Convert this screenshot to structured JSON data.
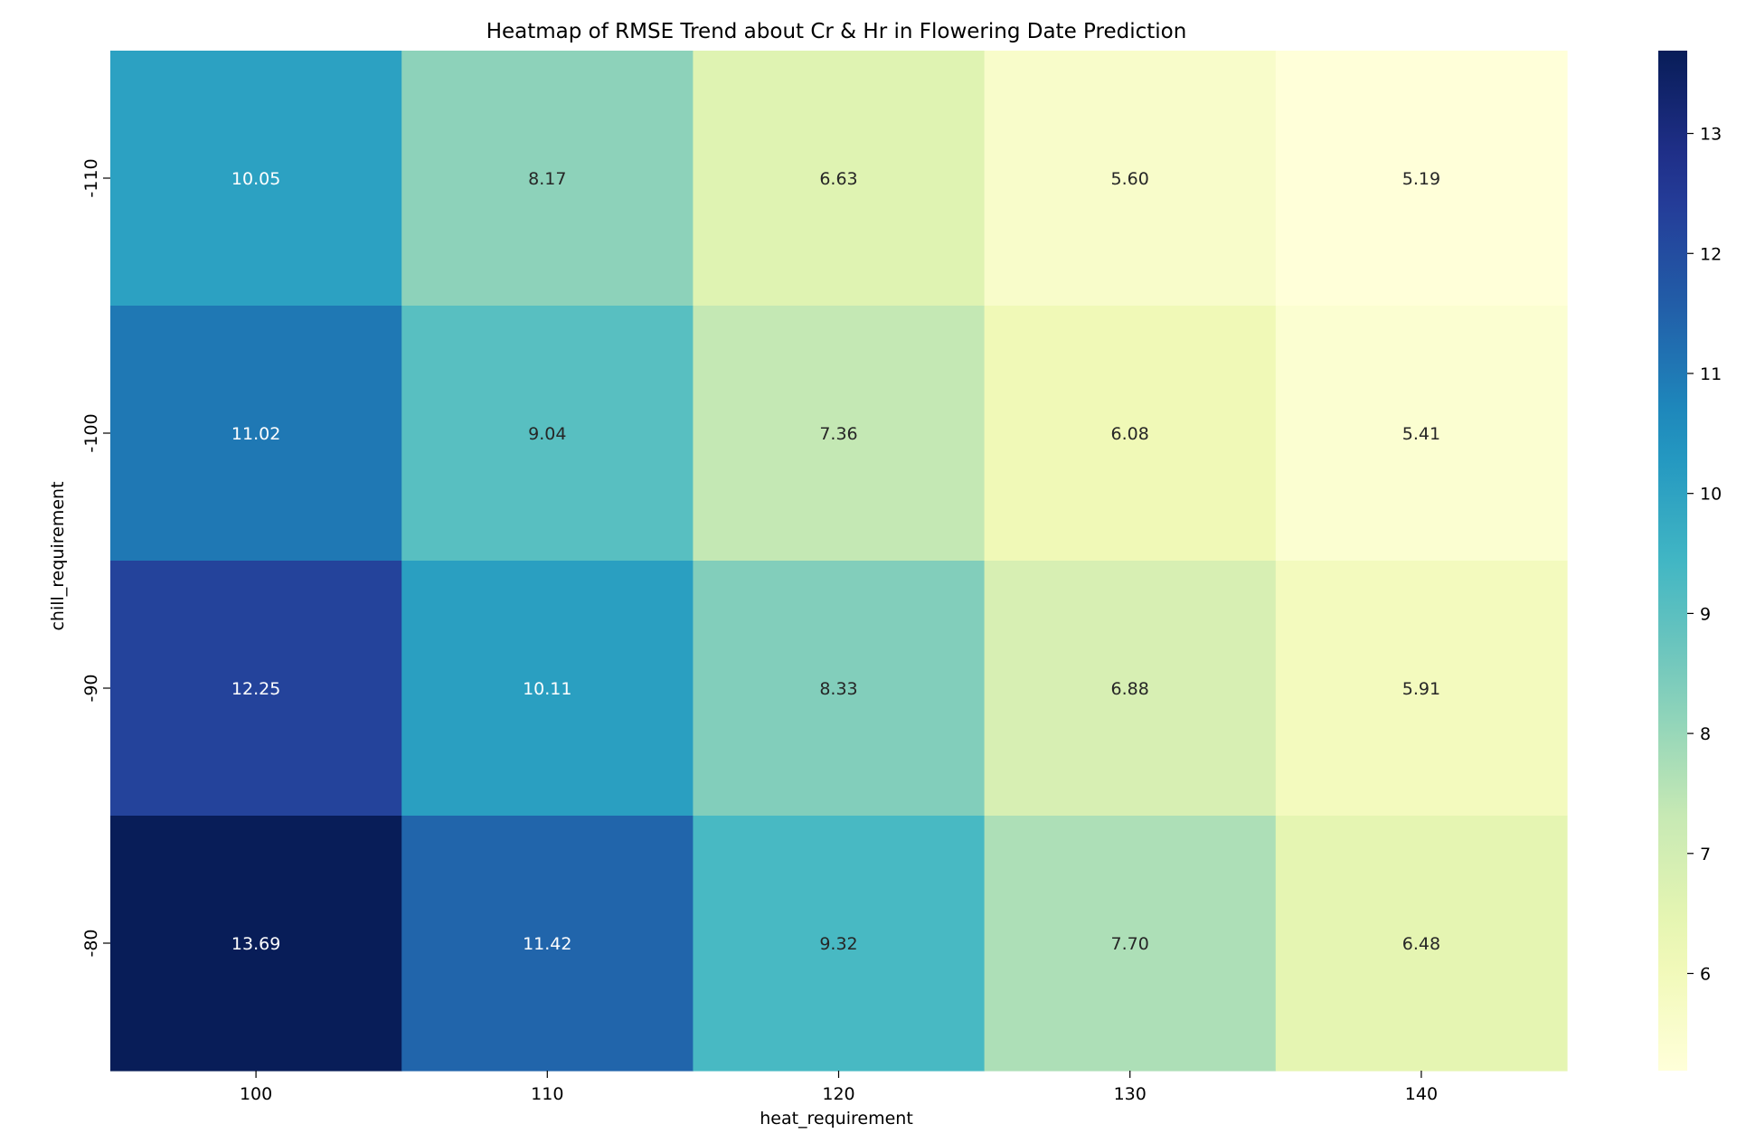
{
  "chart_data": {
    "type": "heatmap",
    "title": "Heatmap of RMSE Trend about Cr & Hr in Flowering Date Prediction",
    "xlabel": "heat_requirement",
    "ylabel": "chill_requirement",
    "x_categories": [
      "100",
      "110",
      "120",
      "130",
      "140"
    ],
    "y_categories": [
      "-110",
      "-100",
      "-90",
      "-80"
    ],
    "values": [
      [
        10.05,
        8.17,
        6.63,
        5.6,
        5.19
      ],
      [
        11.02,
        9.04,
        7.36,
        6.08,
        5.41
      ],
      [
        12.25,
        10.11,
        8.33,
        6.88,
        5.91
      ],
      [
        13.69,
        11.42,
        9.32,
        7.7,
        6.48
      ]
    ],
    "value_format": "2 decimals",
    "colormap": "YlGnBu",
    "color_range": [
      5.19,
      13.69
    ],
    "colorbar": {
      "ticks": [
        6,
        7,
        8,
        9,
        10,
        11,
        12,
        13
      ],
      "placement": "right"
    }
  }
}
